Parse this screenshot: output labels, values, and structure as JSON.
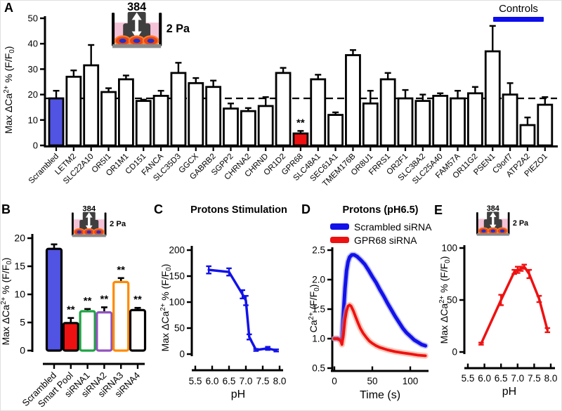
{
  "figure_title": "GPR68 siRNA mechanotransduction screen figure",
  "controls_legend": {
    "label": "Controls",
    "color": "#0d0dee"
  },
  "well_icon": {
    "top_label": "384",
    "side_label": "2 Pa",
    "number_color": "#6b5400",
    "liquid_color": "#f4c2d7",
    "plunger_color": "#3f3f3f",
    "arrow_color": "#ffffff",
    "cell_color": "#e84715",
    "cell_ring_color": "#ff7a2f",
    "nucleus_color": "#2030c8",
    "base_color": "#8a8a8a",
    "wall_color": "#000000"
  },
  "panels": {
    "A": {
      "label": "A"
    },
    "B": {
      "label": "B"
    },
    "C": {
      "label": "C"
    },
    "D": {
      "label": "D"
    },
    "E": {
      "label": "E"
    }
  },
  "chart_data": [
    {
      "id": "A",
      "type": "bar",
      "title": "",
      "xlabel": "",
      "ylabel": "Max ΔCa^{2+} % (F/F_{0})",
      "ylim": [
        0,
        50
      ],
      "yticks": [
        0,
        10,
        20,
        30,
        40,
        50
      ],
      "ytick_labels": [
        "0",
        "10",
        "20",
        "30",
        "40",
        "50"
      ],
      "reference_line": 18.5,
      "categories": [
        "Scrambled",
        "LETM2",
        "SLC22A10",
        "OR5I1",
        "OR1M1",
        "CD151",
        "FANCA",
        "SLC35D3",
        "GGCX",
        "GABRB2",
        "SGPP2",
        "CHRNA2",
        "CHRND",
        "OR1D2",
        "GPR68",
        "SLC48A1",
        "SEC61A1",
        "TMEM176B",
        "OR8U1",
        "FRRS1",
        "OR2F1",
        "SLC38A2",
        "SLC25A40",
        "FAM57A",
        "OR11G2",
        "PSEN1",
        "C9orf7",
        "ATP2A2",
        "PIEZO1"
      ],
      "values": [
        18.5,
        27,
        31.5,
        21,
        26,
        17.5,
        19.5,
        28.5,
        24.5,
        23,
        14.5,
        13.5,
        15.5,
        28.5,
        4.7,
        26,
        12,
        35.5,
        16.5,
        26,
        18.5,
        17.5,
        19.5,
        18.5,
        20.5,
        37,
        20,
        8,
        16
      ],
      "errors": [
        3,
        2.5,
        8,
        1.5,
        1.5,
        0.5,
        2,
        4,
        2,
        2.5,
        2,
        1.2,
        3.5,
        2,
        1,
        1.8,
        1,
        2,
        5,
        2.5,
        3.3,
        2.5,
        1,
        3,
        2.5,
        10,
        4.5,
        3,
        3
      ],
      "default_fill": "#ffffff",
      "bar_stroke": "#000000",
      "highlight_fills": {
        "0": "#5153e3",
        "14": "#ee1111"
      },
      "significance": [
        {
          "index": 14,
          "text": "**"
        }
      ]
    },
    {
      "id": "B",
      "type": "bar",
      "title": "",
      "xlabel": "",
      "ylabel": "Max ΔCa^{2+} % (F/F_{0})",
      "ylim": [
        0,
        20
      ],
      "yticks": [
        0,
        5,
        10,
        15,
        20
      ],
      "ytick_labels": [
        "0",
        "5",
        "10",
        "15",
        "20"
      ],
      "categories": [
        "Scrambled",
        "Smart Pool",
        "siRNA1",
        "siRNA2",
        "siRNA3",
        "siRNA4"
      ],
      "values": [
        18.1,
        4.9,
        7.0,
        6.8,
        12.2,
        7.2
      ],
      "errors": [
        0.8,
        0.9,
        0.4,
        0.9,
        0.7,
        0.4
      ],
      "bar_styles": [
        {
          "fill": "#5153e3",
          "stroke": "#000000"
        },
        {
          "fill": "#ee1111",
          "stroke": "#000000"
        },
        {
          "fill": "#ffffff",
          "stroke": "#1fa345"
        },
        {
          "fill": "#ffffff",
          "stroke": "#9153bd"
        },
        {
          "fill": "#ffffff",
          "stroke": "#ff8a00"
        },
        {
          "fill": "#ffffff",
          "stroke": "#000000"
        }
      ],
      "significance": [
        {
          "index": 1,
          "text": "**"
        },
        {
          "index": 2,
          "text": "**"
        },
        {
          "index": 3,
          "text": "**"
        },
        {
          "index": 4,
          "text": "**"
        },
        {
          "index": 5,
          "text": "**"
        }
      ]
    },
    {
      "id": "C",
      "type": "line",
      "title": "Protons Stimulation",
      "xlabel": "pH",
      "ylabel": "Max ΔCa^{2+} % (F/F_{0})",
      "xlim": [
        5.5,
        8.0
      ],
      "ylim": [
        0,
        200
      ],
      "xticks": [
        5.5,
        6.0,
        6.5,
        7.0,
        7.5,
        8.0
      ],
      "xtick_labels": [
        "5.5",
        "6.0",
        "6.5",
        "7.0",
        "7.5",
        "8.0"
      ],
      "yticks": [
        0,
        50,
        100,
        150,
        200
      ],
      "ytick_labels": [
        "0",
        "50",
        "100",
        "150",
        "200"
      ],
      "series": [
        {
          "name": "",
          "color": "#1212e8",
          "x": [
            5.9,
            6.5,
            6.9,
            7.0,
            7.1,
            7.3,
            7.65,
            7.9
          ],
          "y": [
            162,
            158,
            115,
            103,
            33,
            8,
            11,
            7
          ],
          "yerr": [
            7,
            7,
            8,
            9,
            5,
            2,
            3,
            2
          ]
        }
      ]
    },
    {
      "id": "D",
      "type": "line",
      "title": "Protons (pH6.5)",
      "xlabel": "Time (s)",
      "ylabel": "Ca^{2+} (F/F_{0})",
      "xlim": [
        0,
        120
      ],
      "ylim": [
        0.5,
        2.5
      ],
      "xticks": [
        0,
        50,
        100
      ],
      "xtick_labels": [
        "0",
        "50",
        "100"
      ],
      "yticks": [
        0.5,
        1.0,
        1.5,
        2.0,
        2.5
      ],
      "ytick_labels": [
        "0.5",
        "1.0",
        "1.5",
        "2.0",
        "2.5"
      ],
      "series": [
        {
          "name": "Scrambled siRNA",
          "color": "#1212e8",
          "band_color": "#8d8df6",
          "x": [
            0,
            4,
            8,
            10,
            12,
            14,
            16,
            18,
            20,
            23,
            26,
            30,
            35,
            40,
            45,
            50,
            55,
            60,
            65,
            70,
            75,
            80,
            85,
            90,
            95,
            100,
            105,
            110,
            115,
            120
          ],
          "y": [
            1.0,
            1.0,
            0.98,
            1.02,
            1.45,
            1.85,
            2.15,
            2.3,
            2.38,
            2.42,
            2.42,
            2.39,
            2.33,
            2.26,
            2.16,
            2.05,
            1.95,
            1.83,
            1.72,
            1.6,
            1.49,
            1.38,
            1.28,
            1.18,
            1.1,
            1.04,
            0.98,
            0.94,
            0.9,
            0.88
          ]
        },
        {
          "name": "GPR68 siRNA",
          "color": "#ee1111",
          "band_color": "#ff9980",
          "x": [
            0,
            4,
            8,
            10,
            12,
            14,
            16,
            18,
            20,
            22,
            25,
            28,
            31,
            34,
            38,
            42,
            46,
            50,
            55,
            60,
            70,
            80,
            90,
            100,
            110,
            120
          ],
          "y": [
            1.0,
            1.0,
            0.97,
            0.9,
            1.08,
            1.32,
            1.47,
            1.55,
            1.57,
            1.55,
            1.47,
            1.37,
            1.27,
            1.18,
            1.09,
            1.02,
            0.96,
            0.92,
            0.88,
            0.85,
            0.81,
            0.78,
            0.76,
            0.74,
            0.72,
            0.71
          ]
        }
      ]
    },
    {
      "id": "E",
      "type": "line",
      "title": "",
      "xlabel": "pH",
      "ylabel": "Max ΔCa^{2+} % (F/F_{0})",
      "xlim": [
        5.5,
        8.0
      ],
      "ylim": [
        0,
        100
      ],
      "xticks": [
        5.5,
        6.0,
        6.5,
        7.0,
        7.5,
        8.0
      ],
      "xtick_labels": [
        "5.5",
        "6.0",
        "6.5",
        "7.0",
        "7.5",
        "8.0"
      ],
      "yticks": [
        0,
        50,
        100
      ],
      "ytick_labels": [
        "0",
        "50",
        "100"
      ],
      "series": [
        {
          "name": "",
          "color": "#ee1111",
          "x": [
            5.9,
            6.5,
            6.9,
            7.0,
            7.1,
            7.2,
            7.35,
            7.65,
            7.9
          ],
          "y": [
            8,
            50,
            77,
            79,
            80,
            82,
            75,
            51,
            21
          ],
          "yerr": [
            1,
            5,
            2,
            3,
            2,
            2,
            4,
            3,
            2
          ]
        }
      ]
    }
  ]
}
